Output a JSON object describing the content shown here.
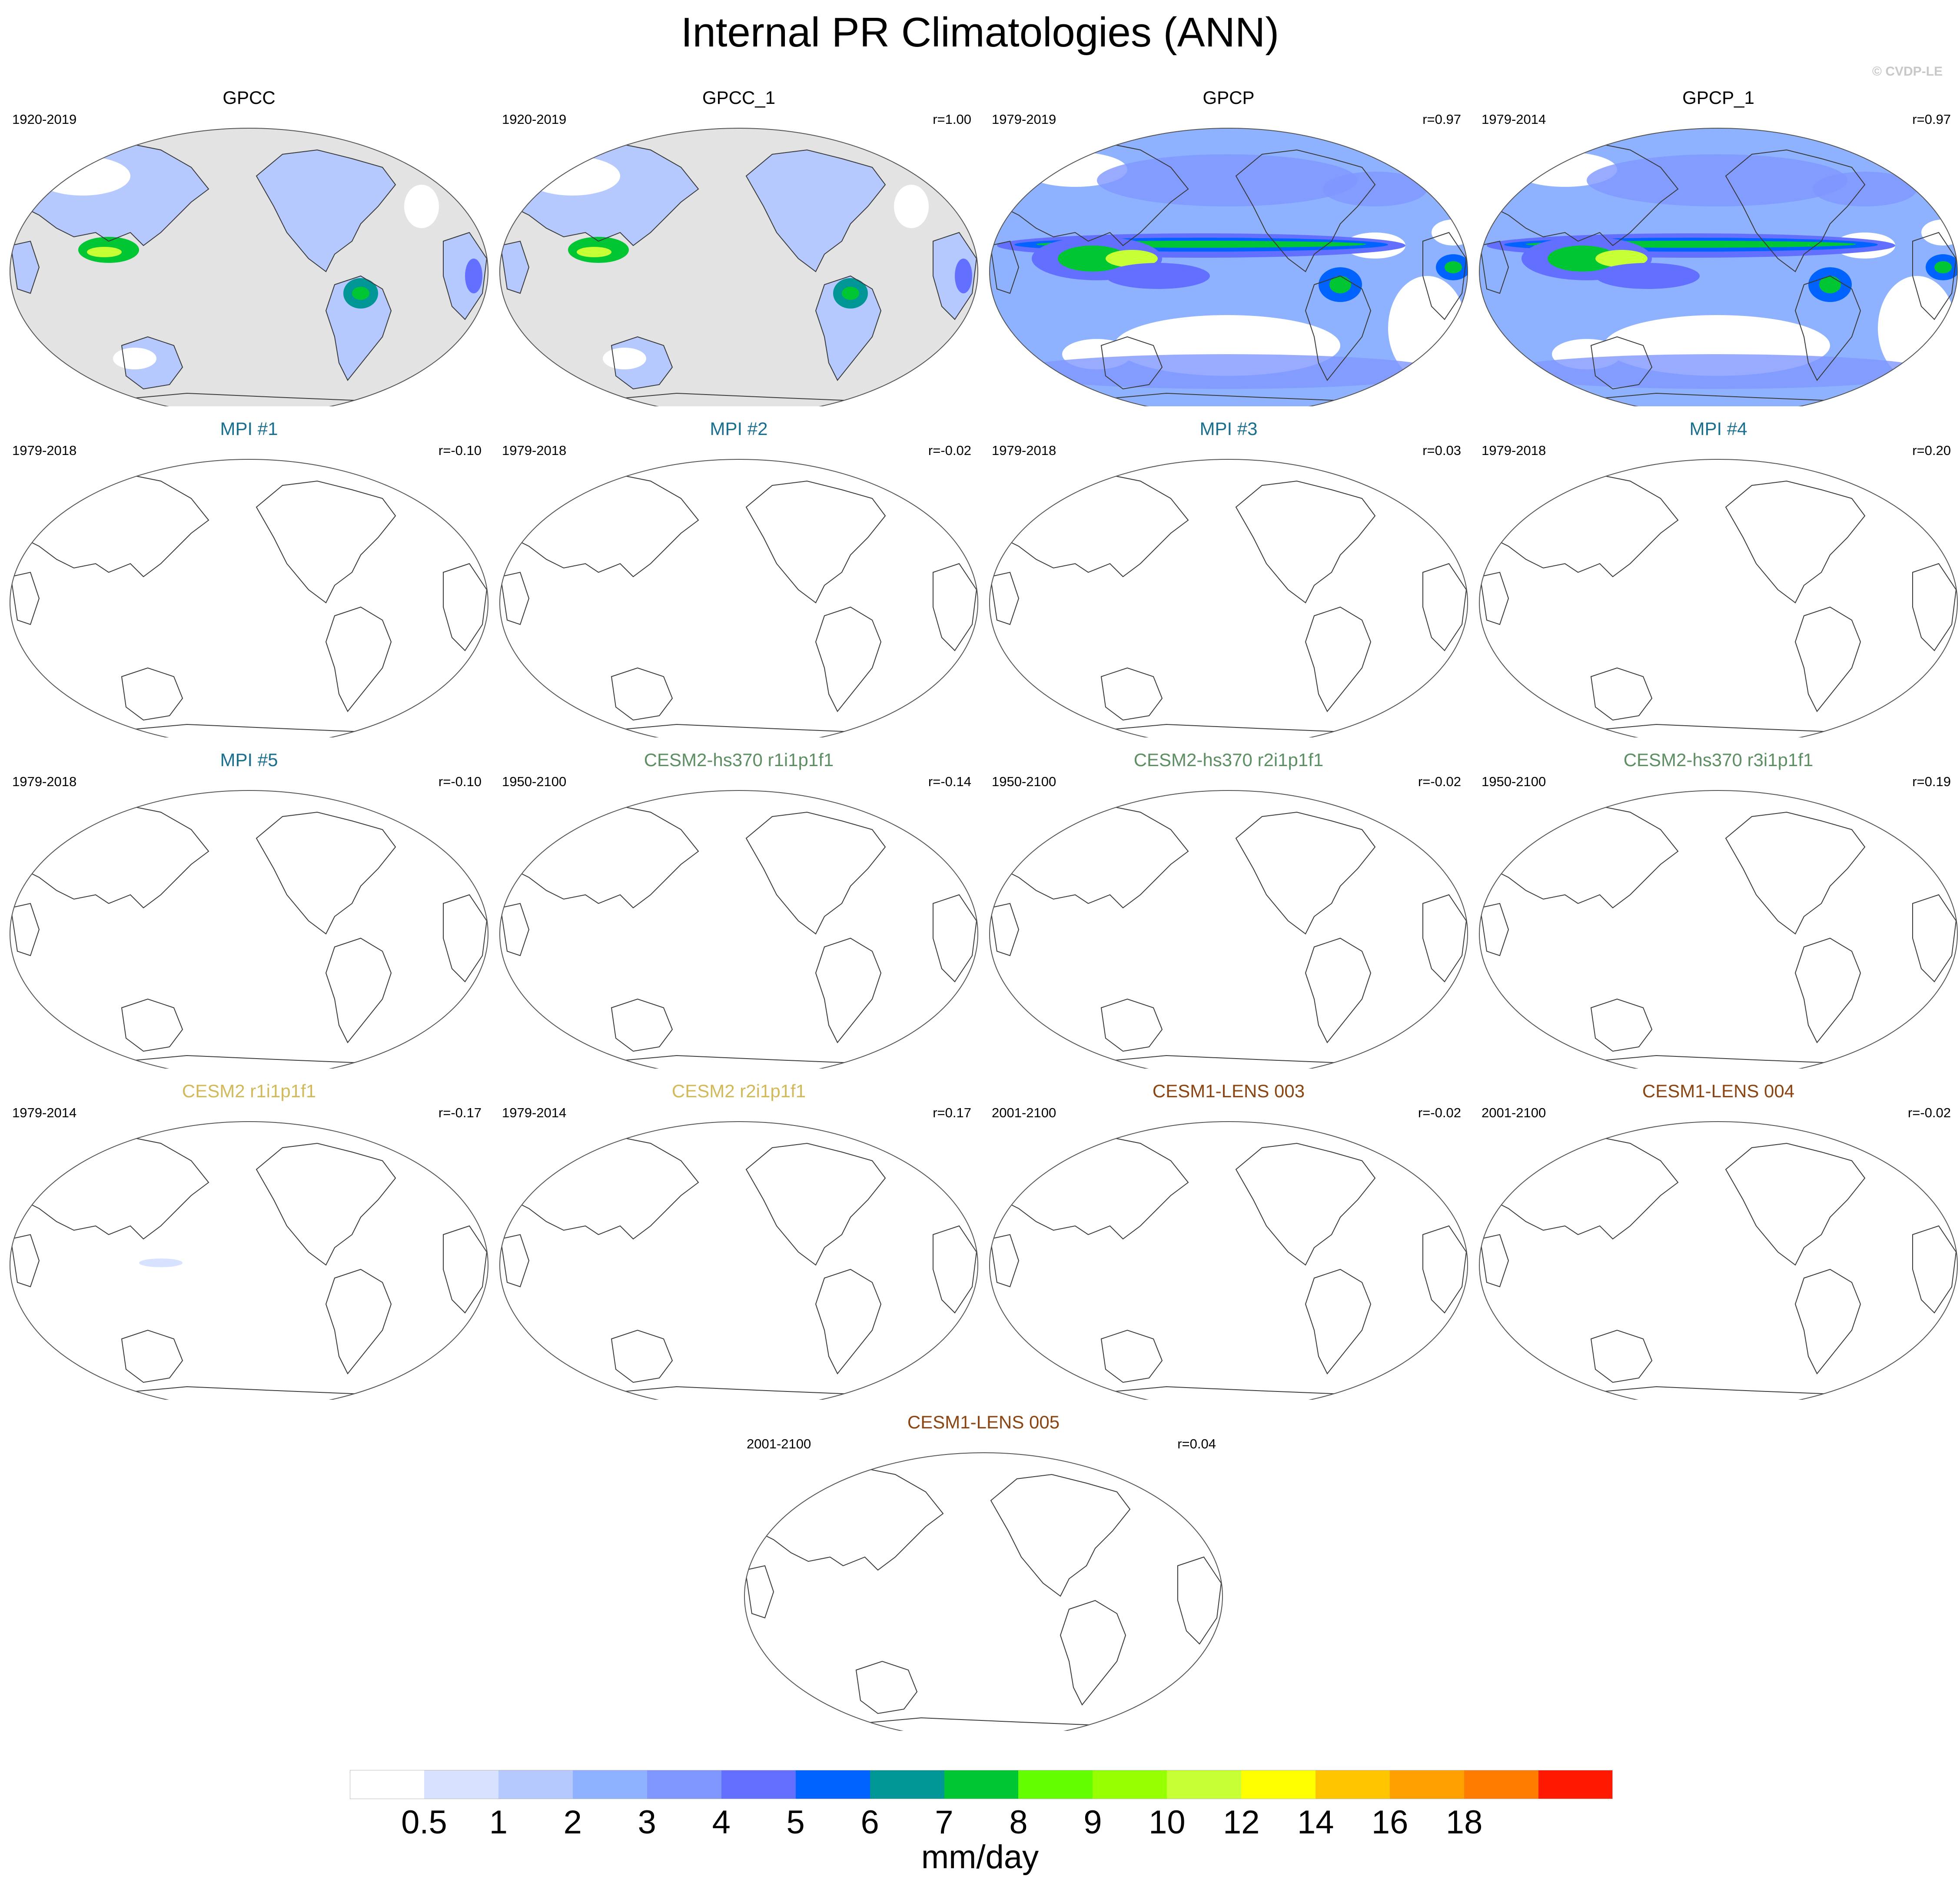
{
  "title": "Internal PR Climatologies (ANN)",
  "credit": "© CVDP-LE",
  "panels": [
    {
      "title": "GPCC",
      "years": "1920-2019",
      "r": "",
      "color": "#000000",
      "fill": "land"
    },
    {
      "title": "GPCC_1",
      "years": "1920-2019",
      "r": "r=1.00",
      "color": "#000000",
      "fill": "land"
    },
    {
      "title": "GPCP",
      "years": "1979-2019",
      "r": "r=0.97",
      "color": "#000000",
      "fill": "global"
    },
    {
      "title": "GPCP_1",
      "years": "1979-2014",
      "r": "r=0.97",
      "color": "#000000",
      "fill": "global"
    },
    {
      "title": "MPI #1",
      "years": "1979-2018",
      "r": "r=-0.10",
      "color": "#1a6e8e",
      "fill": "none"
    },
    {
      "title": "MPI #2",
      "years": "1979-2018",
      "r": "r=-0.02",
      "color": "#1a6e8e",
      "fill": "none"
    },
    {
      "title": "MPI #3",
      "years": "1979-2018",
      "r": "r=0.03",
      "color": "#1a6e8e",
      "fill": "none"
    },
    {
      "title": "MPI #4",
      "years": "1979-2018",
      "r": "r=0.20",
      "color": "#1a6e8e",
      "fill": "none"
    },
    {
      "title": "MPI #5",
      "years": "1979-2018",
      "r": "r=-0.10",
      "color": "#1a6e8e",
      "fill": "none"
    },
    {
      "title": "CESM2-hs370 r1i1p1f1",
      "years": "1950-2100",
      "r": "r=-0.14",
      "color": "#5e8f64",
      "fill": "none"
    },
    {
      "title": "CESM2-hs370 r2i1p1f1",
      "years": "1950-2100",
      "r": "r=-0.02",
      "color": "#5e8f64",
      "fill": "none"
    },
    {
      "title": "CESM2-hs370 r3i1p1f1",
      "years": "1950-2100",
      "r": "r=0.19",
      "color": "#5e8f64",
      "fill": "none"
    },
    {
      "title": "CESM2 r1i1p1f1",
      "years": "1979-2014",
      "r": "r=-0.17",
      "color": "#d2b95a",
      "fill": "patch"
    },
    {
      "title": "CESM2 r2i1p1f1",
      "years": "1979-2014",
      "r": "r=0.17",
      "color": "#d2b95a",
      "fill": "none"
    },
    {
      "title": "CESM1-LENS 003",
      "years": "2001-2100",
      "r": "r=-0.02",
      "color": "#8b4513",
      "fill": "none"
    },
    {
      "title": "CESM1-LENS 004",
      "years": "2001-2100",
      "r": "r=-0.02",
      "color": "#8b4513",
      "fill": "none"
    },
    {
      "title": "CESM1-LENS 005",
      "years": "2001-2100",
      "r": "r=0.04",
      "color": "#8b4513",
      "fill": "none"
    }
  ],
  "colorbar": {
    "units": "mm/day",
    "labels": [
      "0.5",
      "1",
      "2",
      "3",
      "4",
      "5",
      "6",
      "7",
      "8",
      "9",
      "10",
      "12",
      "14",
      "16",
      "18"
    ],
    "colors": [
      "#ffffff",
      "#d6e2ff",
      "#b5c9ff",
      "#8eb2ff",
      "#7f96ff",
      "#6370ff",
      "#0063ff",
      "#009696",
      "#00c633",
      "#63ff00",
      "#96ff00",
      "#c6ff33",
      "#ffff00",
      "#ffc600",
      "#ffa000",
      "#ff7c00",
      "#ff1900"
    ]
  }
}
